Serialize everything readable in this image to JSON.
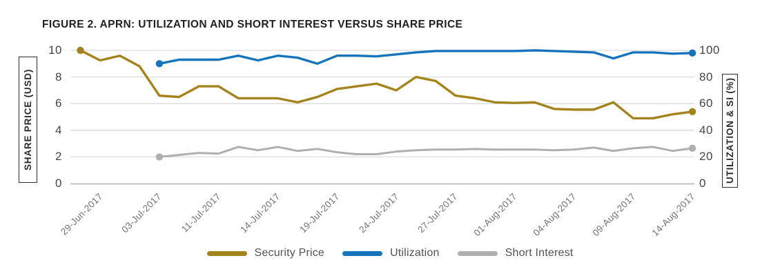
{
  "chart_data": {
    "type": "line",
    "title": "FIGURE 2. APRN: UTILIZATION AND SHORT INTEREST VERSUS SHARE PRICE",
    "grid": "horizontal",
    "legend_position": "bottom",
    "points_per_label_interval": 3,
    "x_tick_labels": [
      "29-Jun-2017",
      "03-Jul-2017",
      "11-Jul-2017",
      "14-Jul-2017",
      "19-Jul-2017",
      "24-Jul-2017",
      "27-Jul-2017",
      "01-Aug-2017",
      "04-Aug-2017",
      "09-Aug-2017",
      "14-Aug-2017"
    ],
    "left_axis": {
      "label": "SHARE PRICE (USD)",
      "range": [
        0,
        10
      ],
      "ticks": [
        10,
        8,
        6,
        4,
        2,
        0
      ]
    },
    "right_axis": {
      "label": "UTILIZATION & SI (%)",
      "range": [
        0,
        100
      ],
      "ticks": [
        100,
        80,
        60,
        40,
        20,
        0
      ]
    },
    "series": [
      {
        "name": "Security Price",
        "axis": "left",
        "color": "#a5831c",
        "stroke_width": 3.4,
        "markers": "first-and-last",
        "start_index": 0,
        "values": [
          10.0,
          9.25,
          9.6,
          8.8,
          6.6,
          6.5,
          7.3,
          7.3,
          6.4,
          6.4,
          6.4,
          6.1,
          6.5,
          7.1,
          7.3,
          7.5,
          7.0,
          8.0,
          7.7,
          6.6,
          6.4,
          6.1,
          6.05,
          6.1,
          5.6,
          5.55,
          5.55,
          6.1,
          4.9,
          4.9,
          5.2,
          5.4
        ]
      },
      {
        "name": "Utilization",
        "axis": "right",
        "color": "#1674bc",
        "stroke_width": 3.4,
        "markers": "first-and-last",
        "start_index": 4,
        "values": [
          90,
          93,
          93,
          93,
          96,
          92.5,
          96,
          94.5,
          90,
          96,
          96,
          95.5,
          97,
          98.5,
          99.5,
          99.5,
          99.5,
          99.5,
          99.5,
          100,
          99.5,
          99,
          98.5,
          94,
          98.5,
          98.5,
          97.5,
          98
        ]
      },
      {
        "name": "Short Interest",
        "axis": "right",
        "color": "#afafaf",
        "stroke_width": 3.0,
        "markers": "first-and-last",
        "start_index": 4,
        "values": [
          20,
          21.5,
          23,
          22.5,
          27.5,
          25,
          27.5,
          24.5,
          26,
          23.5,
          22,
          22,
          24,
          25,
          25.5,
          25.5,
          26,
          25.5,
          25.5,
          25.5,
          25,
          25.5,
          27,
          24.5,
          26.5,
          27.5,
          24.5,
          26.5
        ]
      }
    ],
    "style": {
      "gridline_color": "#dbdbdb",
      "axis_line_color": "#c6c6c8",
      "title_color": "#231f20",
      "tick_label_color": "#454547",
      "date_label_color": "#717275",
      "legend_text_color": "#515254"
    }
  }
}
